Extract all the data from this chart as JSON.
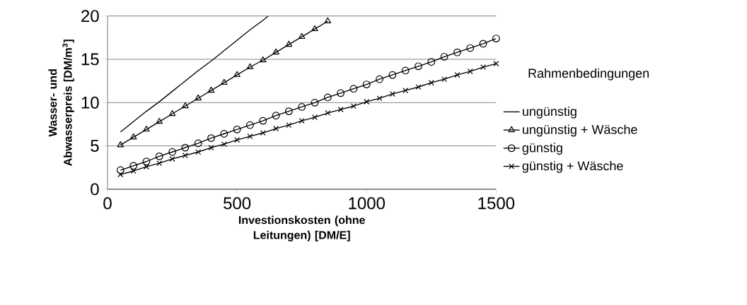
{
  "chart_data": {
    "type": "line",
    "xlabel": "Investionskosten (ohne Leitungen) [DM/E]",
    "ylabel": "Wasser- und Abwasserpreis [DM/m$^{3}$]",
    "legend_title": "Rahmenbedingungen",
    "xlim": [
      0,
      1500
    ],
    "xticks": [
      0,
      500,
      1000,
      1500
    ],
    "ylim": [
      0,
      20
    ],
    "yticks": [
      0,
      5,
      10,
      15,
      20
    ],
    "grid": "y",
    "legend": "right",
    "series": [
      {
        "name": "ungünstig",
        "color": "#000000",
        "marker": "none",
        "x": [
          50,
          100,
          150,
          200,
          250,
          300,
          350,
          400,
          450,
          500,
          550,
          600,
          620
        ],
        "values": [
          6.6,
          7.8,
          9.0,
          10.1,
          11.3,
          12.5,
          13.7,
          14.8,
          16.0,
          17.2,
          18.4,
          19.5,
          20.0
        ]
      },
      {
        "name": "ungünstig + Wäsche",
        "color": "#000000",
        "marker": "triangle",
        "x": [
          50,
          100,
          150,
          200,
          250,
          300,
          350,
          400,
          450,
          500,
          550,
          600,
          650,
          700,
          750,
          800,
          850
        ],
        "values": [
          5.1,
          6.0,
          6.9,
          7.8,
          8.7,
          9.6,
          10.5,
          11.4,
          12.3,
          13.2,
          14.1,
          14.9,
          15.8,
          16.7,
          17.6,
          18.5,
          19.4
        ]
      },
      {
        "name": "günstig",
        "color": "#000000",
        "marker": "circle",
        "x": [
          50,
          100,
          150,
          200,
          250,
          300,
          350,
          400,
          450,
          500,
          550,
          600,
          650,
          700,
          750,
          800,
          850,
          900,
          950,
          1000,
          1050,
          1100,
          1150,
          1200,
          1250,
          1300,
          1350,
          1400,
          1450,
          1500
        ],
        "values": [
          2.2,
          2.7,
          3.2,
          3.8,
          4.3,
          4.8,
          5.3,
          5.9,
          6.4,
          6.9,
          7.4,
          7.9,
          8.5,
          9.0,
          9.5,
          10.0,
          10.6,
          11.1,
          11.6,
          12.1,
          12.7,
          13.2,
          13.7,
          14.2,
          14.7,
          15.3,
          15.8,
          16.3,
          16.8,
          17.4
        ]
      },
      {
        "name": "günstig + Wäsche",
        "color": "#000000",
        "marker": "cross",
        "x": [
          50,
          100,
          150,
          200,
          250,
          300,
          350,
          400,
          450,
          500,
          550,
          600,
          650,
          700,
          750,
          800,
          850,
          900,
          950,
          1000,
          1050,
          1100,
          1150,
          1200,
          1250,
          1300,
          1350,
          1400,
          1450,
          1500
        ],
        "values": [
          1.7,
          2.1,
          2.6,
          3.0,
          3.5,
          3.9,
          4.3,
          4.8,
          5.2,
          5.7,
          6.1,
          6.5,
          7.0,
          7.4,
          7.9,
          8.3,
          8.8,
          9.2,
          9.6,
          10.1,
          10.5,
          11.0,
          11.4,
          11.8,
          12.3,
          12.7,
          13.2,
          13.6,
          14.1,
          14.5
        ]
      }
    ]
  }
}
